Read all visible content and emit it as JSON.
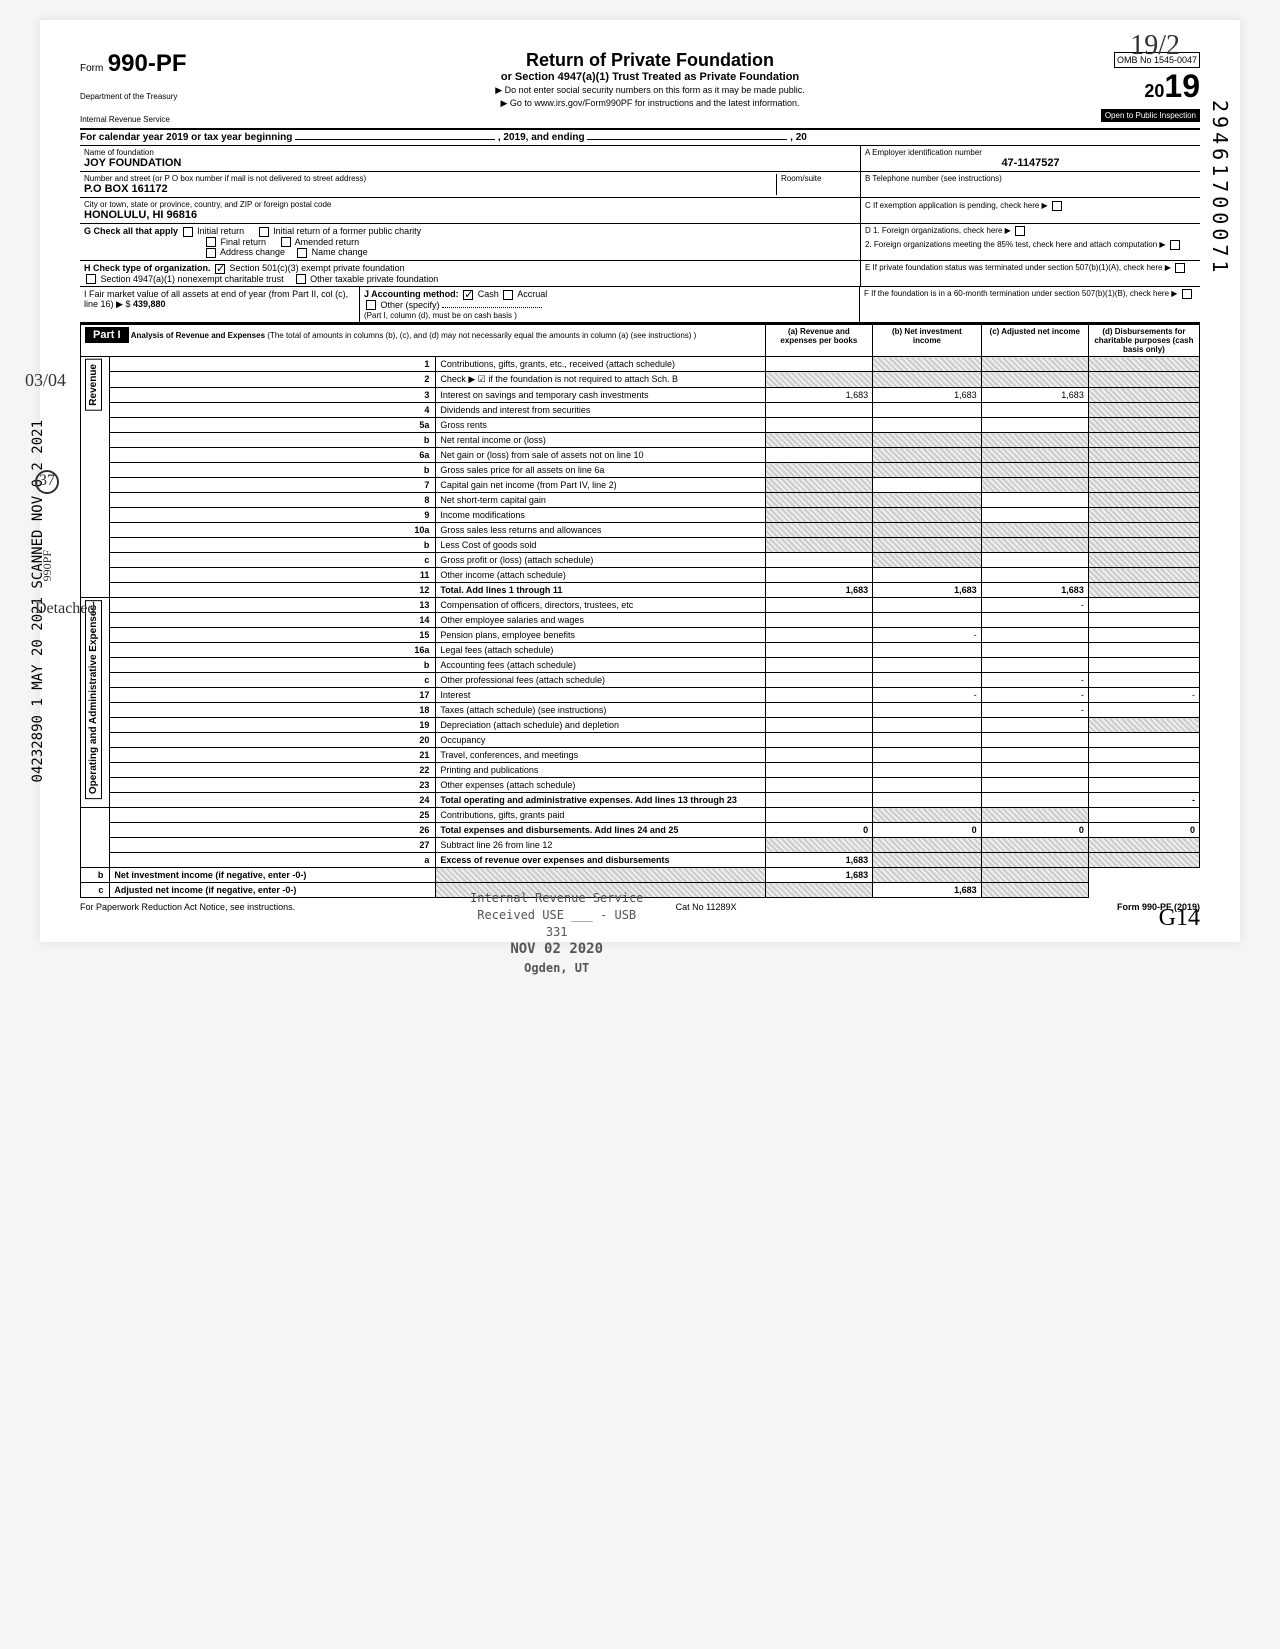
{
  "handwritten": {
    "top_right": "19/2",
    "bottom_right": "G14",
    "left_margin_date": "03/04",
    "left_margin_circled": "37"
  },
  "side_stamps": {
    "scanned": "SCANNED NOV 0 2 2021",
    "detached": "Detached",
    "may": "1 MAY 20 2021",
    "dln": "04232890",
    "form_code": "990PF"
  },
  "right_vertical_number": "29461700071",
  "form": {
    "form_label": "Form",
    "number": "990-PF",
    "dept": "Department of the Treasury",
    "irs": "Internal Revenue Service",
    "title": "Return of Private Foundation",
    "subtitle": "or Section 4947(a)(1) Trust Treated as Private Foundation",
    "instruction1": "▶ Do not enter social security numbers on this form as it may be made public.",
    "instruction2": "▶ Go to www.irs.gov/Form990PF for instructions and the latest information.",
    "omb": "OMB No 1545-0047",
    "year_prefix": "20",
    "year_digits": "19",
    "inspection": "Open to Public Inspection"
  },
  "cal_year": {
    "text_start": "For calendar year 2019 or tax year beginning",
    "text_mid": ", 2019, and ending",
    "text_end": ", 20"
  },
  "foundation": {
    "name_label": "Name of foundation",
    "name": "JOY FOUNDATION",
    "address_label": "Number and street (or P O  box number if mail is not delivered to street address)",
    "address": "P.O BOX 161172",
    "room_label": "Room/suite",
    "city_label": "City or town, state or province, country, and ZIP or foreign postal code",
    "city": "HONOLULU, HI  96816",
    "ein_label": "A  Employer identification number",
    "ein": "47-1147527",
    "phone_label": "B  Telephone number (see instructions)",
    "exemption_label": "C  If exemption application is pending, check here ▶"
  },
  "section_g": {
    "label": "G  Check all that apply",
    "initial": "Initial return",
    "initial_former": "Initial return of a former public charity",
    "final": "Final return",
    "amended": "Amended return",
    "address_change": "Address change",
    "name_change": "Name change"
  },
  "section_d": {
    "d1": "D  1. Foreign organizations, check here",
    "d2": "2. Foreign organizations meeting the 85% test, check here and attach computation"
  },
  "section_h": {
    "label": "H  Check type of organization.",
    "opt1": "Section 501(c)(3) exempt private foundation",
    "opt2": "Section 4947(a)(1) nonexempt charitable trust",
    "opt3": "Other taxable private foundation"
  },
  "section_e": "E  If private foundation status was terminated under section 507(b)(1)(A), check here",
  "section_i": {
    "label": "I  Fair market value of all assets at end of year  (from Part II, col (c), line 16) ▶ $",
    "value": "439,880"
  },
  "section_j": {
    "label": "J  Accounting method:",
    "cash": "Cash",
    "accrual": "Accrual",
    "other": "Other (specify)",
    "note": "(Part I, column (d), must be on cash basis )"
  },
  "section_f": "F  If the foundation is in a 60-month termination under section 507(b)(1)(B), check here",
  "part1": {
    "label": "Part I",
    "title": "Analysis of Revenue and Expenses",
    "subtitle": "(The total of amounts in columns (b), (c), and (d) may not necessarily equal the amounts in column (a) (see instructions) )",
    "col_a": "(a) Revenue and expenses per books",
    "col_b": "(b) Net investment income",
    "col_c": "(c) Adjusted net income",
    "col_d": "(d) Disbursements for charitable purposes (cash basis only)",
    "revenue_label": "Revenue",
    "expenses_label": "Operating and Administrative Expenses"
  },
  "lines": [
    {
      "num": "1",
      "desc": "Contributions, gifts, grants, etc., received (attach schedule)",
      "a": "",
      "b": "",
      "c": "",
      "d": "",
      "shaded": [
        "b",
        "c",
        "d"
      ]
    },
    {
      "num": "2",
      "desc": "Check ▶ ☑ if the foundation is not required to attach Sch. B",
      "a": "",
      "b": "",
      "c": "",
      "d": "",
      "shaded": [
        "a",
        "b",
        "c",
        "d"
      ]
    },
    {
      "num": "3",
      "desc": "Interest on savings and temporary cash investments",
      "a": "1,683",
      "b": "1,683",
      "c": "1,683",
      "d": "",
      "shaded": [
        "d"
      ]
    },
    {
      "num": "4",
      "desc": "Dividends and interest from securities",
      "a": "",
      "b": "",
      "c": "",
      "d": "",
      "shaded": [
        "d"
      ]
    },
    {
      "num": "5a",
      "desc": "Gross rents",
      "a": "",
      "b": "",
      "c": "",
      "d": "",
      "shaded": [
        "d"
      ]
    },
    {
      "num": "b",
      "desc": "Net rental income or (loss)",
      "a": "",
      "b": "",
      "c": "",
      "d": "",
      "shaded": [
        "a",
        "b",
        "c",
        "d"
      ]
    },
    {
      "num": "6a",
      "desc": "Net gain or (loss) from sale of assets not on line 10",
      "a": "",
      "b": "",
      "c": "",
      "d": "",
      "shaded": [
        "b",
        "c",
        "d"
      ]
    },
    {
      "num": "b",
      "desc": "Gross sales price for all assets on line 6a",
      "a": "",
      "b": "",
      "c": "",
      "d": "",
      "shaded": [
        "a",
        "b",
        "c",
        "d"
      ]
    },
    {
      "num": "7",
      "desc": "Capital gain net income (from Part IV, line 2)",
      "a": "",
      "b": "",
      "c": "",
      "d": "",
      "shaded": [
        "a",
        "c",
        "d"
      ]
    },
    {
      "num": "8",
      "desc": "Net short-term capital gain",
      "a": "",
      "b": "",
      "c": "",
      "d": "",
      "shaded": [
        "a",
        "b",
        "d"
      ]
    },
    {
      "num": "9",
      "desc": "Income modifications",
      "a": "",
      "b": "",
      "c": "",
      "d": "",
      "shaded": [
        "a",
        "b",
        "d"
      ]
    },
    {
      "num": "10a",
      "desc": "Gross sales less returns and allowances",
      "a": "",
      "b": "",
      "c": "",
      "d": "",
      "shaded": [
        "a",
        "b",
        "c",
        "d"
      ]
    },
    {
      "num": "b",
      "desc": "Less  Cost of goods sold",
      "a": "",
      "b": "",
      "c": "",
      "d": "",
      "shaded": [
        "a",
        "b",
        "c",
        "d"
      ]
    },
    {
      "num": "c",
      "desc": "Gross profit or (loss) (attach schedule)",
      "a": "",
      "b": "",
      "c": "",
      "d": "",
      "shaded": [
        "b",
        "d"
      ]
    },
    {
      "num": "11",
      "desc": "Other income (attach schedule)",
      "a": "",
      "b": "",
      "c": "",
      "d": "",
      "shaded": [
        "d"
      ]
    },
    {
      "num": "12",
      "desc": "Total. Add lines 1 through 11",
      "a": "1,683",
      "b": "1,683",
      "c": "1,683",
      "d": "",
      "shaded": [
        "d"
      ],
      "bold": true
    },
    {
      "num": "13",
      "desc": "Compensation of officers, directors, trustees, etc",
      "a": "",
      "b": "",
      "c": "-",
      "d": ""
    },
    {
      "num": "14",
      "desc": "Other employee salaries and wages",
      "a": "",
      "b": "",
      "c": "",
      "d": ""
    },
    {
      "num": "15",
      "desc": "Pension plans, employee benefits",
      "a": "",
      "b": "-",
      "c": "",
      "d": ""
    },
    {
      "num": "16a",
      "desc": "Legal fees (attach schedule)",
      "a": "",
      "b": "",
      "c": "",
      "d": ""
    },
    {
      "num": "b",
      "desc": "Accounting fees (attach schedule)",
      "a": "",
      "b": "",
      "c": "",
      "d": ""
    },
    {
      "num": "c",
      "desc": "Other professional fees (attach schedule)",
      "a": "",
      "b": "",
      "c": "-",
      "d": ""
    },
    {
      "num": "17",
      "desc": "Interest",
      "a": "",
      "b": "-",
      "c": "-",
      "d": "-"
    },
    {
      "num": "18",
      "desc": "Taxes (attach schedule) (see instructions)",
      "a": "",
      "b": "",
      "c": "-",
      "d": ""
    },
    {
      "num": "19",
      "desc": "Depreciation (attach schedule) and depletion",
      "a": "",
      "b": "",
      "c": "",
      "d": "",
      "shaded": [
        "d"
      ]
    },
    {
      "num": "20",
      "desc": "Occupancy",
      "a": "",
      "b": "",
      "c": "",
      "d": ""
    },
    {
      "num": "21",
      "desc": "Travel, conferences, and meetings",
      "a": "",
      "b": "",
      "c": "",
      "d": ""
    },
    {
      "num": "22",
      "desc": "Printing and publications",
      "a": "",
      "b": "",
      "c": "",
      "d": ""
    },
    {
      "num": "23",
      "desc": "Other expenses (attach schedule)",
      "a": "",
      "b": "",
      "c": "",
      "d": ""
    },
    {
      "num": "24",
      "desc": "Total operating and administrative expenses. Add lines 13 through 23",
      "a": "",
      "b": "",
      "c": "",
      "d": "-",
      "bold": true
    },
    {
      "num": "25",
      "desc": "Contributions, gifts, grants paid",
      "a": "",
      "b": "",
      "c": "",
      "d": "",
      "shaded": [
        "b",
        "c"
      ]
    },
    {
      "num": "26",
      "desc": "Total expenses and disbursements. Add lines 24 and 25",
      "a": "0",
      "b": "0",
      "c": "0",
      "d": "0",
      "bold": true
    },
    {
      "num": "27",
      "desc": "Subtract line 26 from line 12",
      "a": "",
      "b": "",
      "c": "",
      "d": "",
      "shaded": [
        "a",
        "b",
        "c",
        "d"
      ]
    },
    {
      "num": "a",
      "desc": "Excess of revenue over expenses and disbursements",
      "a": "1,683",
      "b": "",
      "c": "",
      "d": "",
      "shaded": [
        "b",
        "c",
        "d"
      ],
      "bold": true
    },
    {
      "num": "b",
      "desc": "Net investment income (if negative, enter -0-)",
      "a": "",
      "b": "1,683",
      "c": "",
      "d": "",
      "shaded": [
        "a",
        "c",
        "d"
      ],
      "bold": true
    },
    {
      "num": "c",
      "desc": "Adjusted net income (if negative, enter -0-)",
      "a": "",
      "b": "",
      "c": "1,683",
      "d": "",
      "shaded": [
        "a",
        "b",
        "d"
      ],
      "bold": true
    }
  ],
  "received_stamp": {
    "line1": "Internal Revenue Service",
    "line2": "Received USE ___ - USB",
    "line3": "331",
    "line4": "NOV 02 2020",
    "line5": "Ogden, UT"
  },
  "footer": {
    "notice": "For Paperwork Reduction Act Notice, see instructions.",
    "cat": "Cat  No  11289X",
    "form_ref": "Form 990-PF (2019)"
  }
}
